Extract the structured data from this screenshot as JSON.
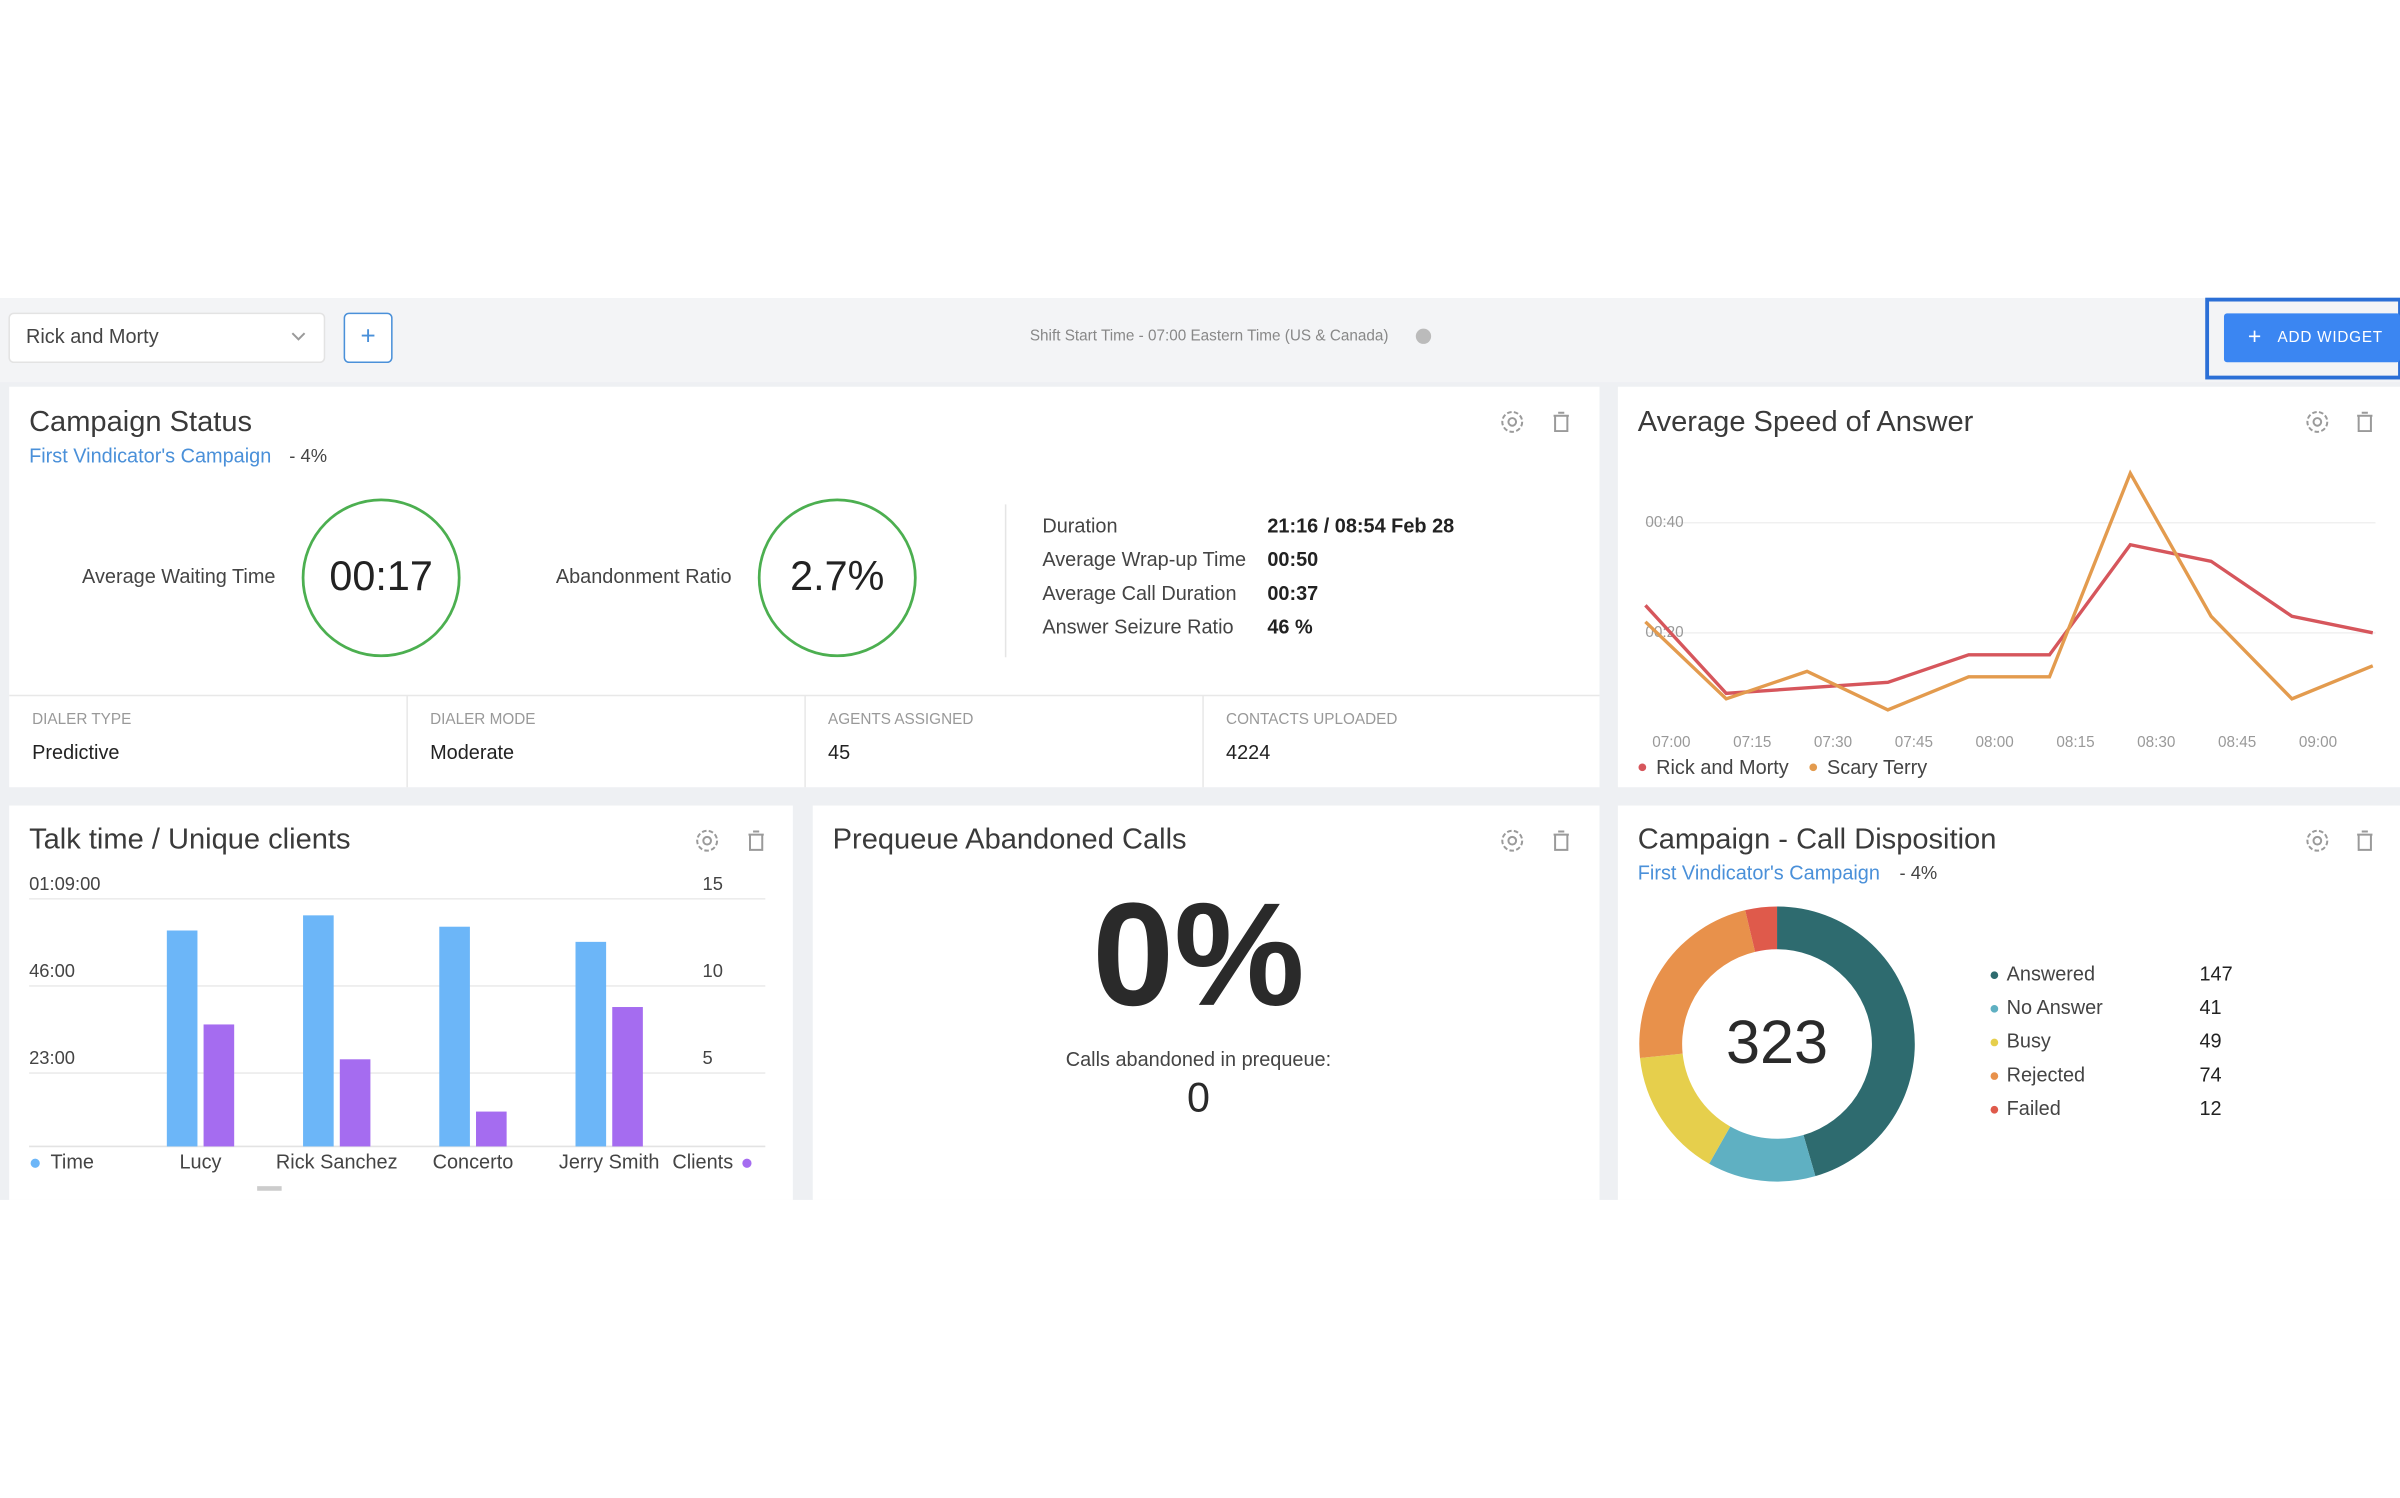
{
  "toolbar": {
    "campaign": "Rick and Morty",
    "add": "+",
    "shift_info": "Shift Start Time - 07:00 Eastern Time (US & Canada)",
    "add_widget": "ADD WIDGET"
  },
  "campaign_status": {
    "title": "Campaign Status",
    "campaign": "First Vindicator's Campaign",
    "campaign_share": "- 4%",
    "kpis": [
      {
        "label": "Average Waiting Time",
        "value": "00:17"
      },
      {
        "label": "Abandonment Ratio",
        "value": "2.7%"
      }
    ],
    "details": [
      {
        "label": "Duration",
        "value": "21:16 / 08:54 Feb 28"
      },
      {
        "label": "Average Wrap-up Time",
        "value": "00:50"
      },
      {
        "label": "Average Call Duration",
        "value": "00:37"
      },
      {
        "label": "Answer Seizure Ratio",
        "value": "46 %"
      }
    ],
    "stats": [
      {
        "label": "DIALER TYPE",
        "value": "Predictive"
      },
      {
        "label": "DIALER MODE",
        "value": "Moderate"
      },
      {
        "label": "AGENTS ASSIGNED",
        "value": "45"
      },
      {
        "label": "CONTACTS UPLOADED",
        "value": "4224"
      }
    ]
  },
  "prequeue": {
    "title": "Prequeue Abandoned Calls",
    "value": "0%",
    "caption": "Calls abandoned in prequeue:",
    "count": "0"
  },
  "chart_data": [
    {
      "type": "line",
      "title": "Average Speed of Answer",
      "categories": [
        "07:00",
        "07:15",
        "07:30",
        "07:45",
        "08:00",
        "08:15",
        "08:30",
        "08:45",
        "09:00",
        null
      ],
      "series": [
        {
          "name": "Rick and Morty",
          "color": "#d6565c",
          "values": [
            25,
            9,
            10,
            11,
            16,
            16,
            36,
            33,
            23,
            20
          ]
        },
        {
          "name": "Scary Terry",
          "color": "#e39b4e",
          "values": [
            22,
            8,
            13,
            6,
            12,
            12,
            49,
            23,
            8,
            14
          ]
        }
      ],
      "ylim": [
        0,
        52
      ],
      "yticks": [
        {
          "value": 20,
          "label": "00:20"
        },
        {
          "value": 40,
          "label": "00:40"
        }
      ],
      "grid": true
    },
    {
      "type": "bar",
      "title": "Talk time / Unique clients",
      "categories": [
        "Lucy",
        "Rick Sanchez",
        "Concerto",
        "Jerry Smith"
      ],
      "series": [
        {
          "name": "Time",
          "color": "#6cb6f8",
          "values": [
            57,
            61,
            58,
            54
          ]
        },
        {
          "name": "Clients",
          "color": "#a56cf0",
          "values": [
            7,
            5,
            2,
            8
          ],
          "axis": "y2"
        }
      ],
      "ylim": [
        0,
        69
      ],
      "yticks": [
        {
          "value": 23,
          "label": "23:00"
        },
        {
          "value": 46,
          "label": "46:00"
        },
        {
          "value": 69,
          "label": "01:09:00"
        }
      ],
      "y2lim": [
        0,
        15
      ],
      "y2ticks": [
        5,
        10,
        15
      ],
      "grid": true
    },
    {
      "type": "donut",
      "title": "Campaign - Call Disposition",
      "subtitle": "First Vindicator's Campaign",
      "subtitle_share": "- 4%",
      "categories": [
        "Answered",
        "No Answer",
        "Busy",
        "Rejected",
        "Failed"
      ],
      "values": [
        147,
        41,
        49,
        74,
        12
      ],
      "colors": [
        "#2e6b6f",
        "#5fb0c2",
        "#e6cf4c",
        "#e8914b",
        "#df5a4b"
      ],
      "total": 323
    }
  ]
}
